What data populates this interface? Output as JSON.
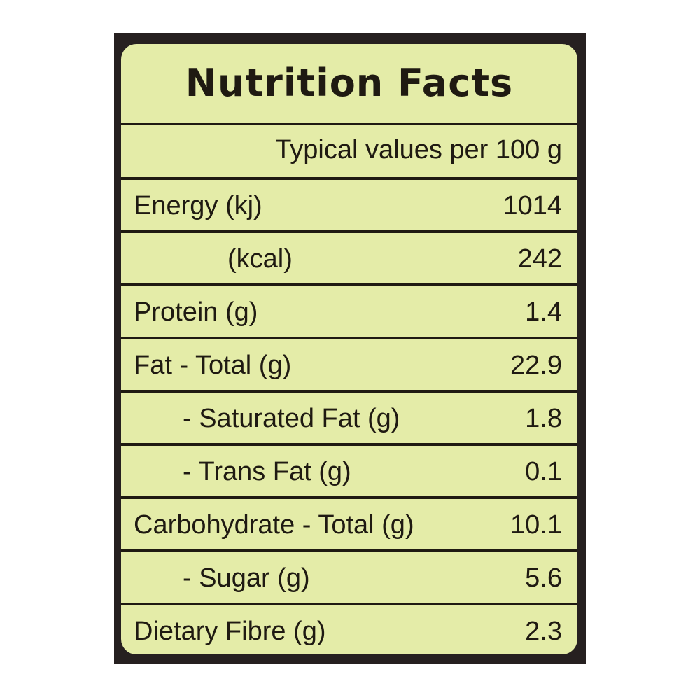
{
  "label": {
    "title": "Nutrition Facts",
    "basis": "Typical values per 100 g",
    "rows": [
      {
        "name": "Energy (kj)",
        "value": "1014"
      },
      {
        "name": "(kcal)",
        "value": "242"
      },
      {
        "name": "Protein (g)",
        "value": "1.4"
      },
      {
        "name": "Fat - Total (g)",
        "value": "22.9"
      },
      {
        "name": "- Saturated Fat (g)",
        "value": "1.8"
      },
      {
        "name": "- Trans Fat (g)",
        "value": "0.1"
      },
      {
        "name": "Carbohydrate - Total (g)",
        "value": "10.1"
      },
      {
        "name": "- Sugar (g)",
        "value": "5.6"
      },
      {
        "name": "Dietary Fibre (g)",
        "value": "2.3"
      }
    ]
  },
  "colors": {
    "background": "#e4eca8",
    "text": "#1f1a12",
    "frame": "#262020"
  }
}
